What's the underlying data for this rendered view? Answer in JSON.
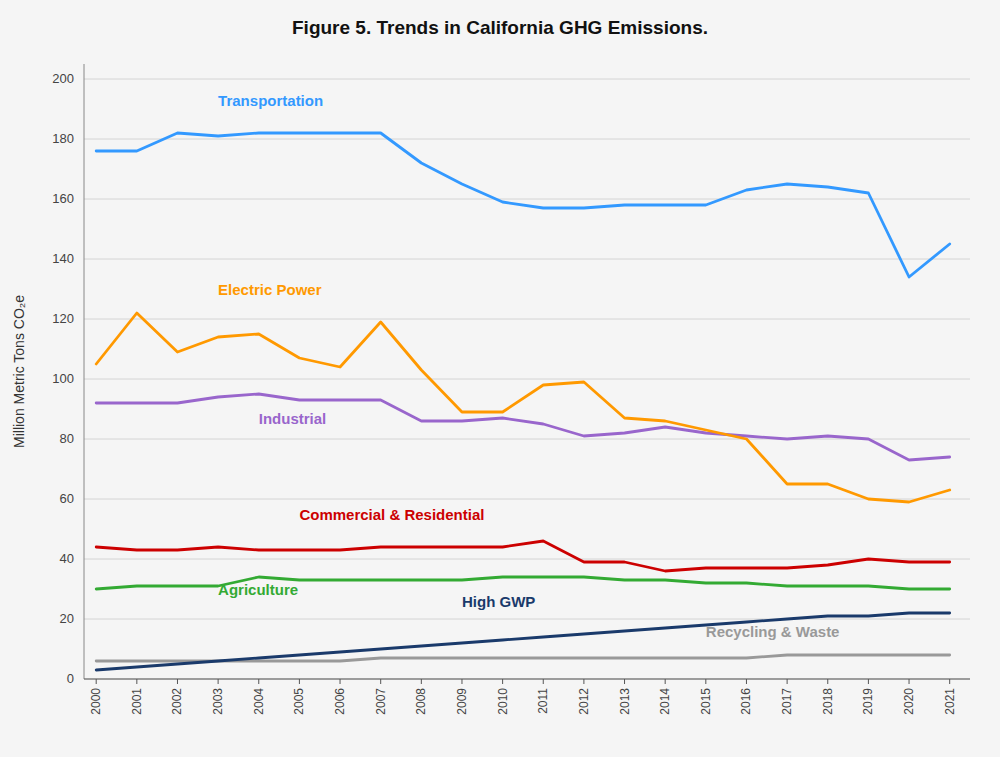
{
  "chart_data": {
    "type": "line",
    "title": "Figure 5. Trends in California GHG Emissions.",
    "y_label": "Million Metric Tons CO₂e",
    "x": [
      2000,
      2001,
      2002,
      2003,
      2004,
      2005,
      2006,
      2007,
      2008,
      2009,
      2010,
      2011,
      2012,
      2013,
      2014,
      2015,
      2016,
      2017,
      2018,
      2019,
      2020,
      2021
    ],
    "series": [
      {
        "name": "Transportation",
        "color": "#3399ff",
        "values": [
          176,
          176,
          182,
          181,
          182,
          182,
          182,
          182,
          172,
          165,
          159,
          157,
          157,
          158,
          158,
          158,
          163,
          165,
          164,
          162,
          134,
          145
        ]
      },
      {
        "name": "Electric Power",
        "color": "#ff9900",
        "values": [
          105,
          122,
          109,
          114,
          115,
          107,
          104,
          119,
          103,
          89,
          89,
          98,
          99,
          87,
          86,
          83,
          80,
          65,
          65,
          60,
          59,
          63
        ]
      },
      {
        "name": "Industrial",
        "color": "#9966cc",
        "values": [
          92,
          92,
          92,
          94,
          95,
          93,
          93,
          93,
          86,
          86,
          87,
          85,
          81,
          82,
          84,
          82,
          81,
          80,
          81,
          80,
          73,
          74
        ]
      },
      {
        "name": "Commercial & Residential",
        "color": "#cc0000",
        "values": [
          44,
          43,
          43,
          44,
          43,
          43,
          43,
          44,
          44,
          44,
          44,
          46,
          39,
          39,
          36,
          37,
          37,
          37,
          38,
          40,
          39,
          39
        ]
      },
      {
        "name": "Agriculture",
        "color": "#33aa33",
        "values": [
          30,
          31,
          31,
          31,
          34,
          33,
          33,
          33,
          33,
          33,
          34,
          34,
          34,
          33,
          33,
          32,
          32,
          31,
          31,
          31,
          30,
          30
        ]
      },
      {
        "name": "High GWP",
        "color": "#1a3a6b",
        "values": [
          3,
          4,
          5,
          6,
          7,
          8,
          9,
          10,
          11,
          12,
          13,
          14,
          15,
          16,
          17,
          18,
          19,
          20,
          21,
          21,
          22,
          22
        ]
      },
      {
        "name": "Recycling & Waste",
        "color": "#999999",
        "values": [
          6,
          6,
          6,
          6,
          6,
          6,
          6,
          7,
          7,
          7,
          7,
          7,
          7,
          7,
          7,
          7,
          7,
          8,
          8,
          8,
          8,
          8
        ]
      }
    ],
    "annotations": [
      {
        "text": "Transportation",
        "x": 2003,
        "y": 190
      },
      {
        "text": "Electric Power",
        "x": 2003,
        "y": 127
      },
      {
        "text": "Industrial",
        "x": 2004,
        "y": 84
      },
      {
        "text": "Commercial & Residential",
        "x": 2005,
        "y": 52
      },
      {
        "text": "Agriculture",
        "x": 2003,
        "y": 27
      },
      {
        "text": "High GWP",
        "x": 2009,
        "y": 23
      },
      {
        "text": "Recycling & Waste",
        "x": 2015,
        "y": 13
      }
    ],
    "xlim": [
      1999.7,
      2021.5
    ],
    "xticks": [
      2000,
      2001,
      2002,
      2003,
      2004,
      2005,
      2006,
      2007,
      2008,
      2009,
      2010,
      2011,
      2012,
      2013,
      2014,
      2015,
      2016,
      2017,
      2018,
      2019,
      2020,
      2021
    ],
    "ylim": [
      0,
      205
    ],
    "yticks": [
      0,
      20,
      40,
      60,
      80,
      100,
      120,
      140,
      160,
      180,
      200
    ],
    "grid": true
  }
}
